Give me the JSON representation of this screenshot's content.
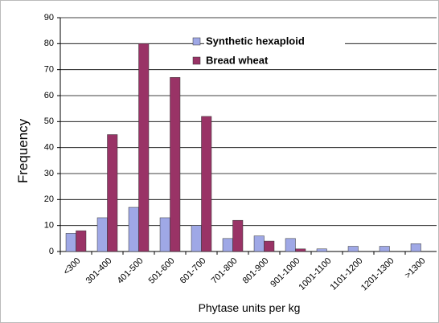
{
  "chart_data": {
    "type": "bar",
    "categories": [
      "<300",
      "301-400",
      "401-500",
      "501-600",
      "601-700",
      "701-800",
      "801-900",
      "901-1000",
      "1001-1100",
      "1101-1200",
      "1201-1300",
      ">1300"
    ],
    "series": [
      {
        "name": "Synthetic hexaploid",
        "color": "#9fa8e6",
        "values": [
          7,
          13,
          17,
          13,
          10,
          5,
          6,
          5,
          1,
          2,
          2,
          3
        ]
      },
      {
        "name": "Bread wheat",
        "color": "#993366",
        "values": [
          8,
          45,
          80,
          67,
          52,
          12,
          4,
          1,
          0,
          0,
          0,
          0
        ]
      }
    ],
    "xlabel": "Phytase units per kg",
    "ylabel": "Frequency",
    "ylim": [
      0,
      90
    ],
    "yticks": [
      0,
      10,
      20,
      30,
      40,
      50,
      60,
      70,
      80,
      90
    ],
    "grid": true,
    "legend": "top"
  }
}
